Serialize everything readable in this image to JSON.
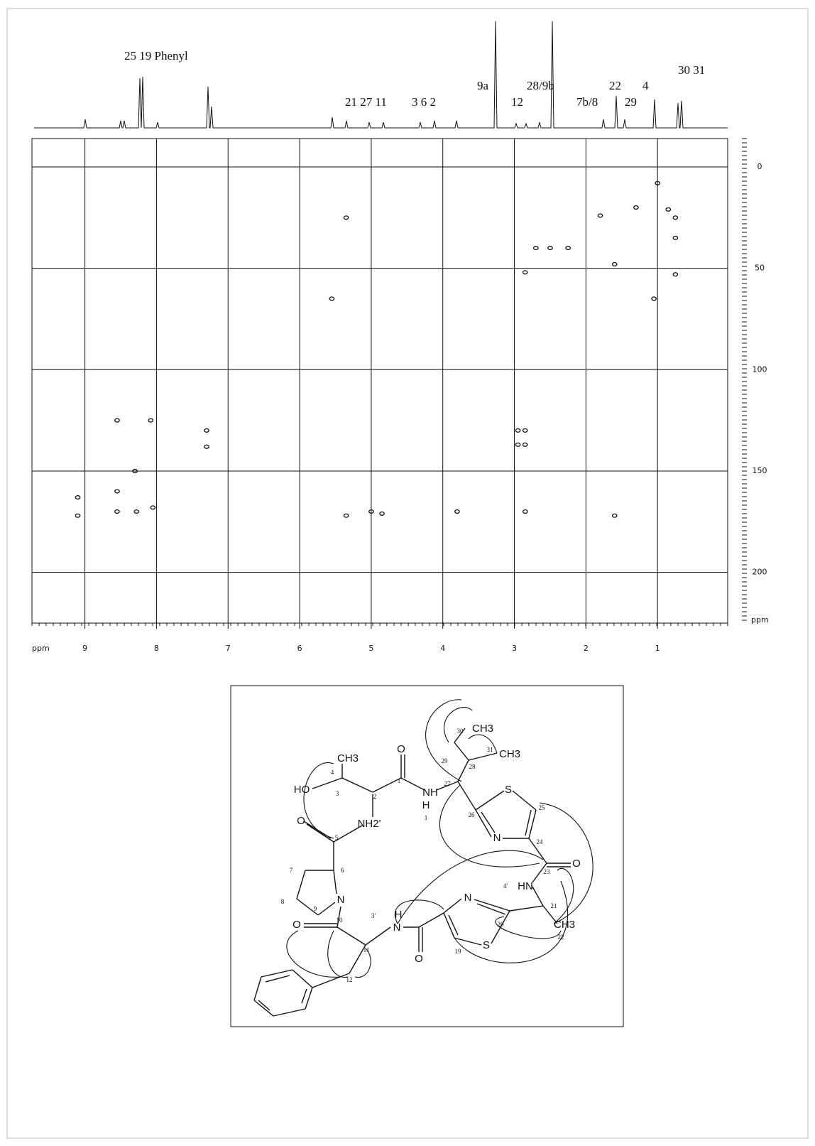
{
  "spectrum": {
    "peak_labels": [
      "25  19  Phenyl",
      "9a",
      "21 27 11",
      "3   6   2",
      "12",
      "28/9b",
      "7b/8",
      "22",
      "29",
      "4",
      "30 31"
    ],
    "x_unit": "ppm",
    "y_unit": "ppm",
    "xlim": [
      9.74,
      0.02
    ],
    "ylim": [
      -14,
      225
    ],
    "xticks": [
      9,
      8,
      7,
      6,
      5,
      4,
      3,
      2,
      1
    ],
    "yticks": [
      0,
      50,
      100,
      150,
      200
    ],
    "cross_peaks": [
      {
        "x": 8.55,
        "y": 125
      },
      {
        "x": 8.08,
        "y": 125
      },
      {
        "x": 7.3,
        "y": 130
      },
      {
        "x": 7.3,
        "y": 138
      },
      {
        "x": 8.3,
        "y": 150
      },
      {
        "x": 8.55,
        "y": 160
      },
      {
        "x": 8.55,
        "y": 170
      },
      {
        "x": 8.28,
        "y": 170
      },
      {
        "x": 8.05,
        "y": 168
      },
      {
        "x": 9.1,
        "y": 163
      },
      {
        "x": 9.1,
        "y": 172
      },
      {
        "x": 5.35,
        "y": 172
      },
      {
        "x": 5.35,
        "y": 25
      },
      {
        "x": 5.0,
        "y": 170
      },
      {
        "x": 4.85,
        "y": 171
      },
      {
        "x": 3.8,
        "y": 170
      },
      {
        "x": 2.95,
        "y": 130
      },
      {
        "x": 2.95,
        "y": 137
      },
      {
        "x": 2.85,
        "y": 130
      },
      {
        "x": 2.85,
        "y": 137
      },
      {
        "x": 2.85,
        "y": 170
      },
      {
        "x": 2.85,
        "y": 52
      },
      {
        "x": 2.7,
        "y": 40
      },
      {
        "x": 2.5,
        "y": 40
      },
      {
        "x": 2.25,
        "y": 40
      },
      {
        "x": 1.6,
        "y": 172
      },
      {
        "x": 1.6,
        "y": 48
      },
      {
        "x": 1.05,
        "y": 65
      },
      {
        "x": 0.75,
        "y": 35
      },
      {
        "x": 0.75,
        "y": 25
      },
      {
        "x": 0.75,
        "y": 53
      },
      {
        "x": 1.3,
        "y": 20
      },
      {
        "x": 0.85,
        "y": 21
      },
      {
        "x": 5.55,
        "y": 65
      },
      {
        "x": 1.8,
        "y": 24
      },
      {
        "x": 1.0,
        "y": 8
      }
    ]
  },
  "structure": {
    "labels": [
      "CH3",
      "4",
      "HO",
      "3",
      "2",
      "O",
      "1",
      "NH",
      "H",
      "1",
      "27",
      "28",
      "29",
      "30",
      "CH3",
      "31",
      "CH3",
      "S",
      "26",
      "25",
      "N",
      "24",
      "O",
      "23",
      "4'",
      "HN",
      "21",
      "CH3",
      "22",
      "20",
      "N",
      "S",
      "19",
      "O",
      "N",
      "H",
      "3'",
      "11",
      "10",
      "O",
      "12",
      "N",
      "6",
      "7",
      "8",
      "9",
      "5",
      "O",
      "NH2'"
    ]
  }
}
